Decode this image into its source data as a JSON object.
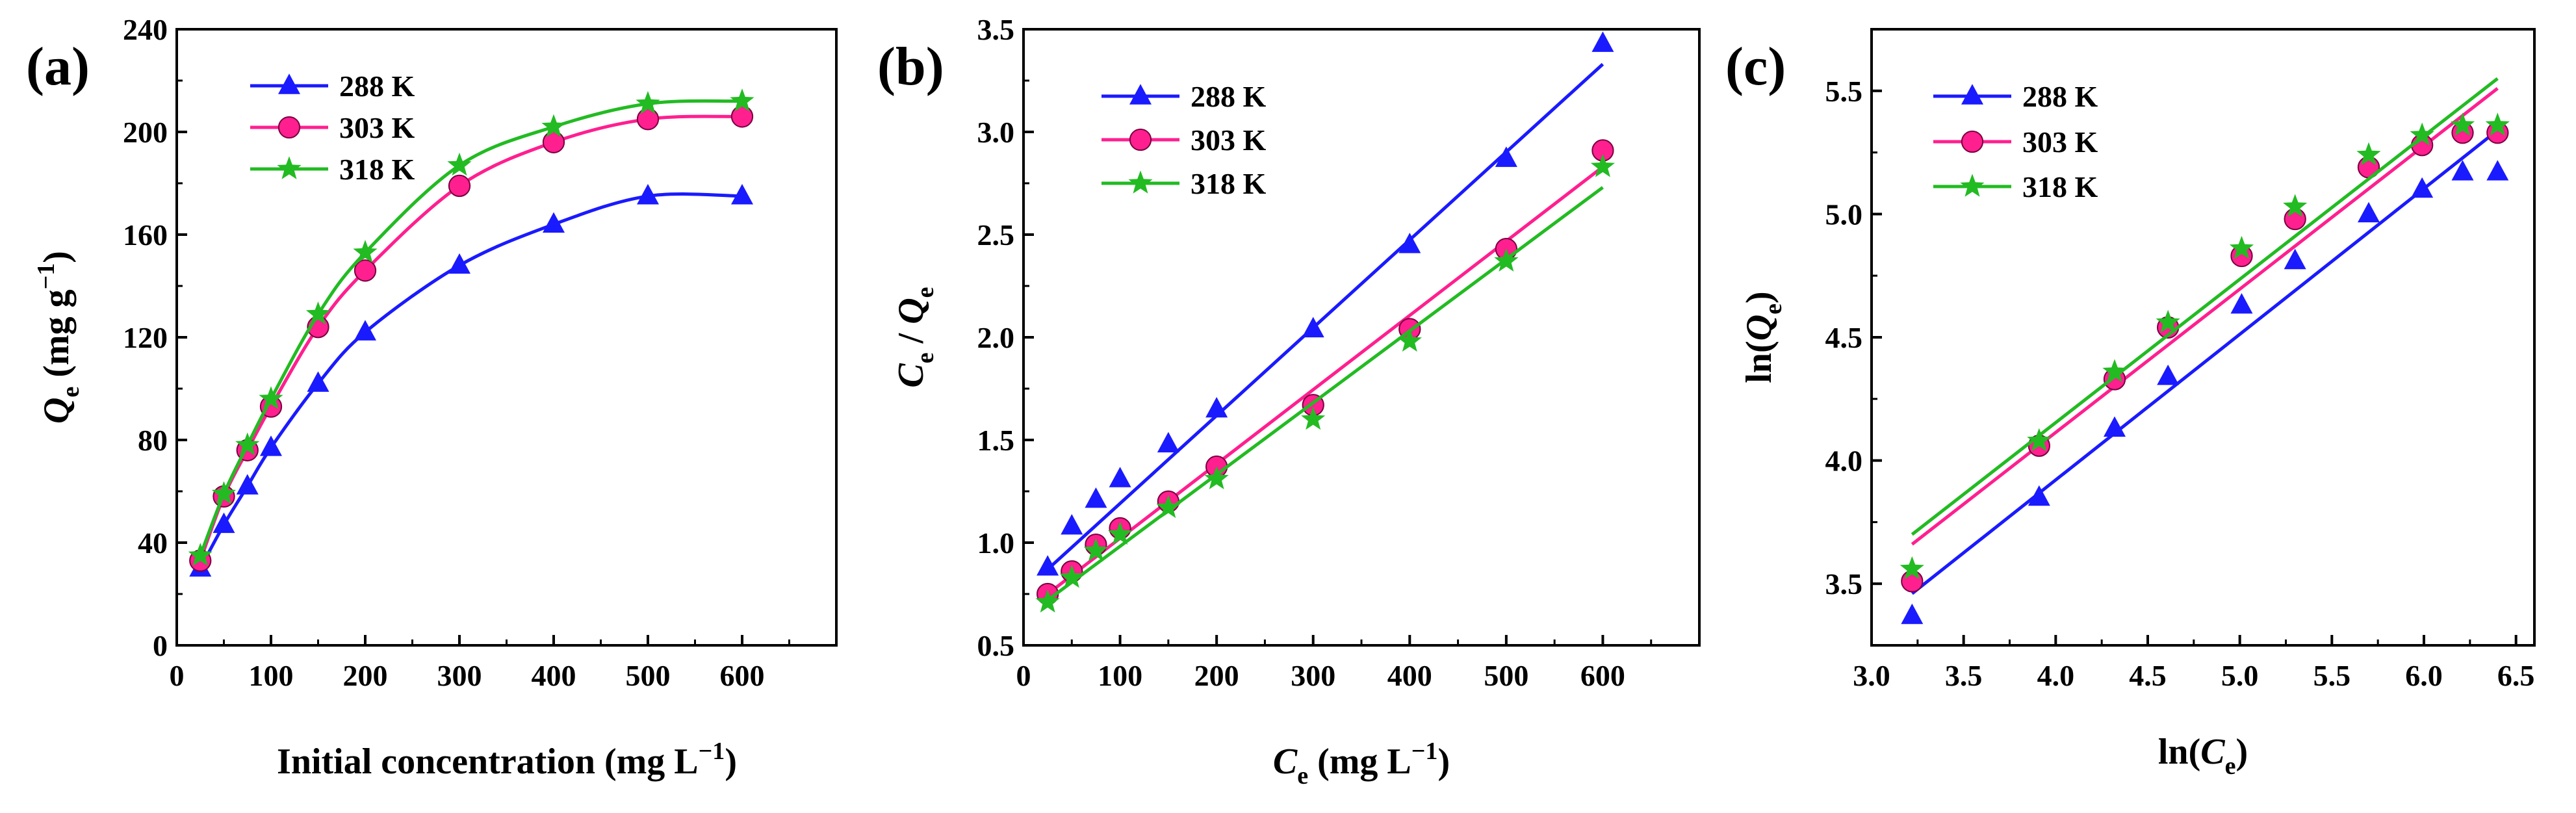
{
  "chart_data": [
    {
      "type": "scatter",
      "panel_label": "(a)",
      "title": "",
      "xlabel": "Initial concentration (mg L",
      "xlabel_sup": "−1",
      "xlabel_close": ")",
      "ylabel_symbol": "Q",
      "ylabel_sub": "e",
      "ylabel_rest": " (mg g",
      "ylabel_sup": "−1",
      "ylabel_close": ")",
      "xlim": [
        0,
        700
      ],
      "ylim": [
        0,
        240
      ],
      "xticks": [
        0,
        100,
        200,
        300,
        400,
        500,
        600
      ],
      "xtick_labels": [
        "0",
        "100",
        "200",
        "300",
        "400",
        "500",
        "600"
      ],
      "yticks": [
        0,
        40,
        80,
        120,
        160,
        200,
        240
      ],
      "ytick_labels": [
        "0",
        "40",
        "80",
        "120",
        "160",
        "200",
        "240"
      ],
      "legend_position": "top-left",
      "fit": "smooth curve through points",
      "series": [
        {
          "name": "288 K",
          "marker": "triangle",
          "color": "#1a1aff",
          "x": [
            25,
            50,
            75,
            100,
            150,
            200,
            300,
            400,
            500,
            600
          ],
          "y": [
            30,
            47,
            62,
            77,
            102,
            122,
            148,
            164,
            175,
            175
          ]
        },
        {
          "name": "303 K",
          "marker": "circle",
          "color": "#ff1f8f",
          "x": [
            25,
            50,
            75,
            100,
            150,
            200,
            300,
            400,
            500,
            600
          ],
          "y": [
            33,
            58,
            76,
            93,
            124,
            146,
            179,
            196,
            205,
            206
          ]
        },
        {
          "name": "318 K",
          "marker": "star",
          "color": "#22bb22",
          "x": [
            25,
            50,
            75,
            100,
            150,
            200,
            300,
            400,
            500,
            600
          ],
          "y": [
            35,
            59,
            78,
            96,
            129,
            153,
            187,
            202,
            211,
            212
          ]
        }
      ]
    },
    {
      "type": "scatter",
      "panel_label": "(b)",
      "title": "",
      "xlabel_symbol": "C",
      "xlabel_sub": "e",
      "xlabel_rest": " (mg L",
      "xlabel_sup": "−1",
      "xlabel_close": ")",
      "ylabel_symbol1": "C",
      "ylabel_sub1": "e",
      "ylabel_slash": " / ",
      "ylabel_symbol2": "Q",
      "ylabel_sub2": "e",
      "xlim": [
        0,
        700
      ],
      "ylim": [
        0.5,
        3.5
      ],
      "xticks": [
        0,
        100,
        200,
        300,
        400,
        500,
        600
      ],
      "xtick_labels": [
        "0",
        "100",
        "200",
        "300",
        "400",
        "500",
        "600"
      ],
      "yticks": [
        0.5,
        1.0,
        1.5,
        2.0,
        2.5,
        3.0,
        3.5
      ],
      "ytick_labels": [
        "0.5",
        "1.0",
        "1.5",
        "2.0",
        "2.5",
        "3.0",
        "3.5"
      ],
      "legend_position": "top-left",
      "fit": "linear",
      "series": [
        {
          "name": "288 K",
          "marker": "triangle",
          "color": "#1a1aff",
          "x": [
            25,
            50,
            75,
            100,
            150,
            200,
            300,
            400,
            500,
            600
          ],
          "y": [
            0.88,
            1.08,
            1.21,
            1.31,
            1.48,
            1.65,
            2.04,
            2.45,
            2.87,
            3.43
          ],
          "fit_x": [
            25,
            600
          ],
          "fit_y": [
            0.87,
            3.33
          ]
        },
        {
          "name": "303 K",
          "marker": "circle",
          "color": "#ff1f8f",
          "x": [
            25,
            50,
            75,
            100,
            150,
            200,
            300,
            400,
            500,
            600
          ],
          "y": [
            0.75,
            0.86,
            0.99,
            1.07,
            1.2,
            1.37,
            1.67,
            2.04,
            2.43,
            2.91
          ],
          "fit_x": [
            25,
            600
          ],
          "fit_y": [
            0.75,
            2.83
          ]
        },
        {
          "name": "318 K",
          "marker": "star",
          "color": "#22bb22",
          "x": [
            25,
            50,
            75,
            100,
            150,
            200,
            300,
            400,
            500,
            600
          ],
          "y": [
            0.71,
            0.83,
            0.96,
            1.04,
            1.17,
            1.31,
            1.6,
            1.98,
            2.37,
            2.83
          ],
          "fit_x": [
            25,
            600
          ],
          "fit_y": [
            0.72,
            2.73
          ]
        }
      ]
    },
    {
      "type": "scatter",
      "panel_label": "(c)",
      "title": "",
      "xlabel_prefix": "ln(",
      "xlabel_symbol": "C",
      "xlabel_sub": "e",
      "xlabel_close": ")",
      "ylabel_prefix": "ln(",
      "ylabel_symbol": "Q",
      "ylabel_sub": "e",
      "ylabel_close": ")",
      "xlim": [
        3.0,
        6.6
      ],
      "ylim": [
        3.25,
        5.75
      ],
      "xticks": [
        3.0,
        3.5,
        4.0,
        4.5,
        5.0,
        5.5,
        6.0,
        6.5
      ],
      "xtick_labels": [
        "3.0",
        "3.5",
        "4.0",
        "4.5",
        "5.0",
        "5.5",
        "6.0",
        "6.5"
      ],
      "yticks": [
        3.5,
        4.0,
        4.5,
        5.0,
        5.5
      ],
      "ytick_labels": [
        "3.5",
        "4.0",
        "4.5",
        "5.0",
        "5.5"
      ],
      "legend_position": "top-left",
      "fit": "linear",
      "series": [
        {
          "name": "288 K",
          "marker": "triangle",
          "color": "#1a1aff",
          "x": [
            3.22,
            3.91,
            4.32,
            4.61,
            5.01,
            5.3,
            5.7,
            5.99,
            6.21,
            6.4
          ],
          "y": [
            3.37,
            3.85,
            4.13,
            4.34,
            4.63,
            4.81,
            5.0,
            5.1,
            5.17,
            5.17
          ],
          "fit_x": [
            3.22,
            6.4
          ],
          "fit_y": [
            3.46,
            5.34
          ]
        },
        {
          "name": "303 K",
          "marker": "circle",
          "color": "#ff1f8f",
          "x": [
            3.22,
            3.91,
            4.32,
            4.61,
            5.01,
            5.3,
            5.7,
            5.99,
            6.21,
            6.4
          ],
          "y": [
            3.51,
            4.06,
            4.33,
            4.54,
            4.83,
            4.98,
            5.19,
            5.28,
            5.33,
            5.33
          ],
          "fit_x": [
            3.22,
            6.4
          ],
          "fit_y": [
            3.66,
            5.51
          ]
        },
        {
          "name": "318 K",
          "marker": "star",
          "color": "#22bb22",
          "x": [
            3.22,
            3.91,
            4.32,
            4.61,
            5.01,
            5.3,
            5.7,
            5.99,
            6.21,
            6.4
          ],
          "y": [
            3.56,
            4.08,
            4.36,
            4.56,
            4.86,
            5.03,
            5.24,
            5.32,
            5.36,
            5.36
          ],
          "fit_x": [
            3.22,
            6.4
          ],
          "fit_y": [
            3.7,
            5.55
          ]
        }
      ]
    }
  ]
}
